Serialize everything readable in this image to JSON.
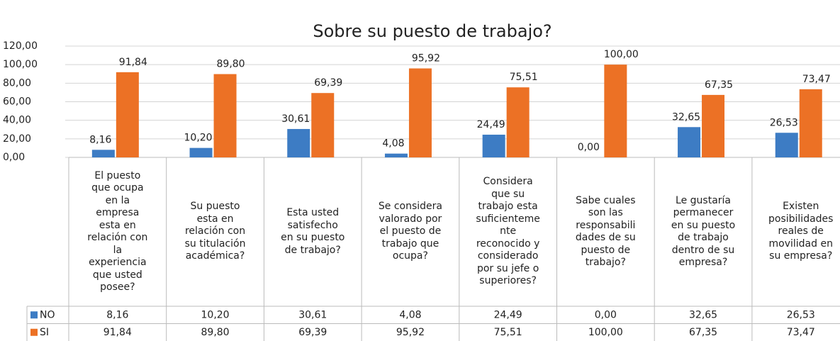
{
  "chart_data": {
    "type": "bar",
    "title": "Sobre su puesto de trabajo?",
    "categories": [
      "El puesto\nque ocupa\nen la\nempresa\nesta en\nrelación con\nla\nexperiencia\nque usted\nposee?",
      "Su puesto\nesta en\nrelación con\nsu titulación\nacadémica?",
      "Esta usted\nsatisfecho\nen su puesto\nde trabajo?",
      "Se considera\nvalorado por\nel puesto de\ntrabajo que\nocupa?",
      "Considera\nque su\ntrabajo esta\nsuficienteme\nnte\nreconocido y\nconsiderado\npor su jefe o\nsuperiores?",
      "Sabe cuales\nson las\nresponsabili\ndades de su\npuesto de\ntrabajo?",
      "Le gustaría\npermanecer\nen su puesto\nde trabajo\ndentro de su\nempresa?",
      "Existen\nposibilidades\nreales de\nmovilidad en\nsu empresa?"
    ],
    "series": [
      {
        "name": "NO",
        "color": "#3d7cc4",
        "values": [
          8.16,
          10.2,
          30.61,
          4.08,
          24.49,
          0,
          32.65,
          26.53
        ],
        "value_labels": [
          "8,16",
          "10,20",
          "30,61",
          "4,08",
          "24,49",
          "0,00",
          "32,65",
          "26,53"
        ]
      },
      {
        "name": "SI",
        "color": "#ec7125",
        "values": [
          91.84,
          89.8,
          69.39,
          95.92,
          75.51,
          100,
          67.35,
          73.47
        ],
        "value_labels": [
          "91,84",
          "89,80",
          "69,39",
          "95,92",
          "75,51",
          "100,00",
          "67,35",
          "73,47"
        ]
      }
    ],
    "ylim": [
      0,
      120
    ],
    "yticks": [
      {
        "value": 0,
        "label": "0,00"
      },
      {
        "value": 20,
        "label": "20,00"
      },
      {
        "value": 40,
        "label": "40,00"
      },
      {
        "value": 60,
        "label": "60,00"
      },
      {
        "value": 80,
        "label": "80,00"
      },
      {
        "value": 100,
        "label": "100,00"
      },
      {
        "value": 120,
        "label": "120,00"
      }
    ],
    "grid": true
  }
}
